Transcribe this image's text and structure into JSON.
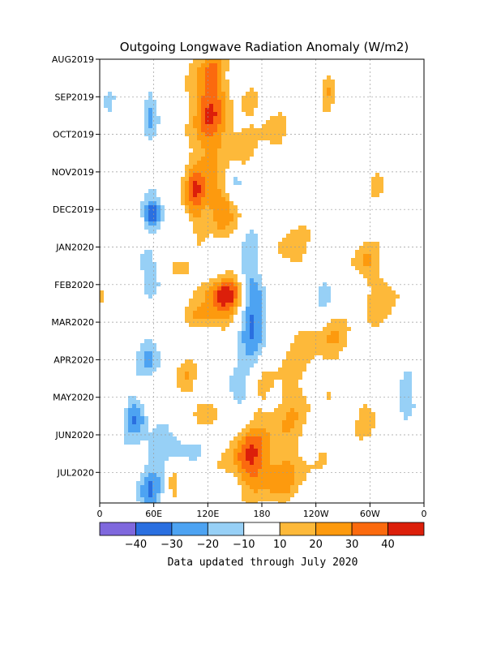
{
  "chart_data": {
    "type": "heatmap",
    "title": "Outgoing Longwave Radiation Anomaly (W/m2)",
    "y_tick_labels": [
      "AUG2019",
      "SEP2019",
      "OCT2019",
      "NOV2019",
      "DEC2019",
      "JAN2020",
      "FEB2020",
      "MAR2020",
      "APR2020",
      "MAY2020",
      "JUN2020",
      "JUL2020"
    ],
    "x_tick_labels": [
      "0",
      "60E",
      "120E",
      "180",
      "120W",
      "60W",
      "0"
    ],
    "x_range_deg": [
      0,
      360
    ],
    "y_range": [
      "AUG2019",
      "JUL2020"
    ],
    "grid": true,
    "colorbar": {
      "levels": [
        -40,
        -30,
        -20,
        -10,
        10,
        20,
        30,
        40
      ],
      "level_labels": [
        "−40",
        "−30",
        "−20",
        "−10",
        "10",
        "20",
        "30",
        "40"
      ],
      "colors": [
        "#7f68dd",
        "#2a6fe0",
        "#4da3f2",
        "#97d0f6",
        "#ffffff",
        "#fdb93a",
        "#fd9a0e",
        "#fb6a0e",
        "#dc1f0a"
      ]
    },
    "note": "Data updated through July 2020",
    "anomaly_features": [
      {
        "lon": 120,
        "date": 1.3,
        "value": 35,
        "rx": 22,
        "ry": 1.0
      },
      {
        "lon": 105,
        "date": 3.5,
        "value": 38,
        "rx": 13,
        "ry": 0.9
      },
      {
        "lon": 135,
        "date": 4.0,
        "value": 33,
        "rx": 14,
        "ry": 0.7
      },
      {
        "lon": 125,
        "date": 0.3,
        "value": 18,
        "rx": 20,
        "ry": 0.6
      },
      {
        "lon": 140,
        "date": 2.6,
        "value": 18,
        "rx": 25,
        "ry": 1.0
      },
      {
        "lon": 185,
        "date": 1.6,
        "value": 15,
        "rx": 22,
        "ry": 0.8
      },
      {
        "lon": 215,
        "date": 5.0,
        "value": 18,
        "rx": 15,
        "ry": 0.8
      },
      {
        "lon": 140,
        "date": 6.3,
        "value": 44,
        "rx": 22,
        "ry": 0.5
      },
      {
        "lon": 120,
        "date": 6.9,
        "value": 20,
        "rx": 25,
        "ry": 0.4
      },
      {
        "lon": 90,
        "date": 5.7,
        "value": 15,
        "rx": 18,
        "ry": 0.5
      },
      {
        "lon": 115,
        "date": 9.4,
        "value": 18,
        "rx": 12,
        "ry": 0.5
      },
      {
        "lon": 95,
        "date": 8.5,
        "value": 15,
        "rx": 15,
        "ry": 0.5
      },
      {
        "lon": 165,
        "date": 10.5,
        "value": 30,
        "rx": 22,
        "ry": 0.7
      },
      {
        "lon": 190,
        "date": 11.2,
        "value": 18,
        "rx": 38,
        "ry": 0.6
      },
      {
        "lon": 205,
        "date": 9.5,
        "value": 16,
        "rx": 40,
        "ry": 1.8
      },
      {
        "lon": 255,
        "date": 7.5,
        "value": 15,
        "rx": 40,
        "ry": 0.7
      },
      {
        "lon": 295,
        "date": 5.4,
        "value": 20,
        "rx": 14,
        "ry": 0.7
      },
      {
        "lon": 320,
        "date": 6.6,
        "value": 14,
        "rx": 20,
        "ry": 1.1
      },
      {
        "lon": 305,
        "date": 3.3,
        "value": 12,
        "rx": 10,
        "ry": 0.6
      },
      {
        "lon": 255,
        "date": 0.8,
        "value": 18,
        "rx": 8,
        "ry": 0.6
      },
      {
        "lon": 295,
        "date": 9.5,
        "value": 12,
        "rx": 18,
        "ry": 0.6
      },
      {
        "lon": 345,
        "date": 10.0,
        "value": 15,
        "rx": 8,
        "ry": 0.6
      },
      {
        "lon": 0,
        "date": 6.2,
        "value": 16,
        "rx": 7,
        "ry": 0.5
      },
      {
        "lon": 80,
        "date": 11.1,
        "value": 15,
        "rx": 8,
        "ry": 0.5
      },
      {
        "lon": 60,
        "date": 4.1,
        "value": -40,
        "rx": 12,
        "ry": 0.4
      },
      {
        "lon": 55,
        "date": 1.4,
        "value": -22,
        "rx": 8,
        "ry": 0.7
      },
      {
        "lon": 10,
        "date": 1.2,
        "value": -15,
        "rx": 7,
        "ry": 0.6
      },
      {
        "lon": 150,
        "date": 3.2,
        "value": -25,
        "rx": 12,
        "ry": 0.5
      },
      {
        "lon": 165,
        "date": 5.6,
        "value": -20,
        "rx": 12,
        "ry": 0.9
      },
      {
        "lon": 170,
        "date": 7.3,
        "value": -33,
        "rx": 16,
        "ry": 0.8
      },
      {
        "lon": 175,
        "date": 6.4,
        "value": -15,
        "rx": 10,
        "ry": 0.6
      },
      {
        "lon": 60,
        "date": 5.8,
        "value": -20,
        "rx": 14,
        "ry": 0.6
      },
      {
        "lon": 55,
        "date": 7.9,
        "value": -25,
        "rx": 12,
        "ry": 0.6
      },
      {
        "lon": 40,
        "date": 9.5,
        "value": -30,
        "rx": 12,
        "ry": 0.5
      },
      {
        "lon": 75,
        "date": 10.3,
        "value": -20,
        "rx": 30,
        "ry": 0.5
      },
      {
        "lon": 55,
        "date": 11.5,
        "value": -30,
        "rx": 14,
        "ry": 0.7
      },
      {
        "lon": 155,
        "date": 8.8,
        "value": -20,
        "rx": 16,
        "ry": 0.5
      },
      {
        "lon": 250,
        "date": 6.2,
        "value": -15,
        "rx": 10,
        "ry": 0.5
      },
      {
        "lon": 340,
        "date": 9.2,
        "value": -22,
        "rx": 12,
        "ry": 0.8
      },
      {
        "lon": 340,
        "date": 7.6,
        "value": -15,
        "rx": 10,
        "ry": 0.6
      },
      {
        "lon": 85,
        "date": 0.4,
        "value": -15,
        "rx": 8,
        "ry": 0.4
      },
      {
        "lon": 315,
        "date": 4.4,
        "value": -12,
        "rx": 8,
        "ry": 0.5
      }
    ]
  }
}
